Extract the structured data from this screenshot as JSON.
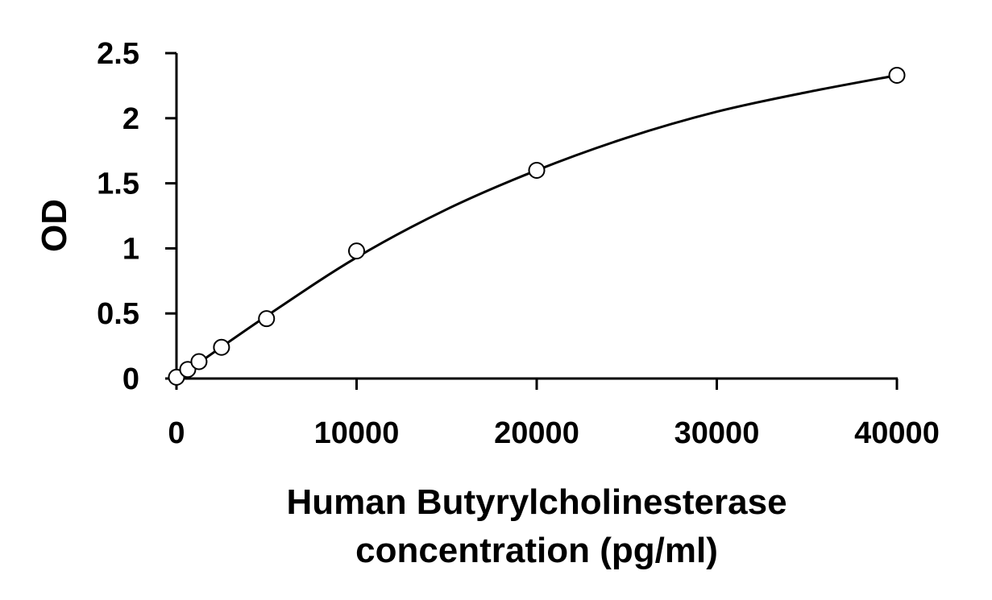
{
  "chart_data": {
    "type": "scatter",
    "title": "",
    "xlabel_lines": [
      "Human Butyrylcholinesterase",
      "concentration (pg/ml)"
    ],
    "ylabel": "OD",
    "xlim": [
      0,
      40000
    ],
    "ylim": [
      0,
      2.5
    ],
    "xticks": [
      0,
      10000,
      20000,
      30000,
      40000
    ],
    "yticks": [
      0,
      0.5,
      1,
      1.5,
      2,
      2.5
    ],
    "xtick_labels": [
      "0",
      "10000",
      "20000",
      "30000",
      "40000"
    ],
    "ytick_labels": [
      "0",
      "0.5",
      "1",
      "1.5",
      "2",
      "2.5"
    ],
    "grid": false,
    "legend": "none",
    "series": [
      {
        "marker": "open-circle",
        "x": [
          0,
          625,
          1250,
          2500,
          5000,
          10000,
          20000,
          40000
        ],
        "y": [
          0.01,
          0.07,
          0.13,
          0.24,
          0.46,
          0.98,
          1.6,
          2.33
        ]
      }
    ],
    "fit_curve": {
      "style": "solid",
      "x": [
        0,
        5000,
        10000,
        15000,
        20000,
        25000,
        30000,
        35000,
        40000
      ],
      "y": [
        0.0,
        0.48,
        0.93,
        1.3,
        1.6,
        1.85,
        2.05,
        2.2,
        2.33
      ]
    },
    "colors": {
      "axis": "#000000",
      "marker_stroke": "#000000",
      "marker_fill": "#ffffff",
      "curve": "#000000",
      "background": "#ffffff"
    }
  }
}
